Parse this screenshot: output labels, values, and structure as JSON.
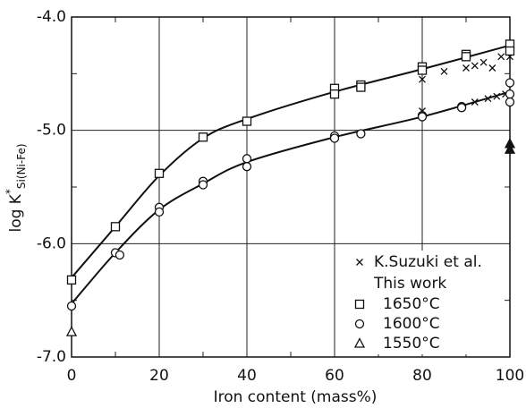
{
  "chart_data": {
    "type": "scatter",
    "xlabel": "Iron content (mass%)",
    "ylabel": {
      "main": "log K",
      "sup": "*",
      "sub": "Si(Ni-Fe)"
    },
    "xlim": [
      0,
      100
    ],
    "xticks": [
      0,
      20,
      40,
      60,
      80,
      100
    ],
    "xminor": [
      10,
      30,
      50,
      70,
      90
    ],
    "ylim": [
      -7,
      -4
    ],
    "yticks": [
      {
        "value": -7,
        "label": "-7.0"
      },
      {
        "value": -6,
        "label": "-6.0"
      },
      {
        "value": -5,
        "label": "-5.0"
      },
      {
        "value": -4,
        "label": "-4.0"
      }
    ],
    "yminor": [
      -6.5,
      -5.5,
      -4.5
    ],
    "grid": true,
    "legend_heading": "This work",
    "series": [
      {
        "name": "K.Suzuki et al.",
        "marker": "cross",
        "color": "#111",
        "x": [
          80,
          85,
          90,
          92,
          94,
          96,
          98,
          100,
          80,
          92,
          95,
          97,
          99
        ],
        "values": [
          -4.55,
          -4.48,
          -4.45,
          -4.43,
          -4.4,
          -4.45,
          -4.35,
          -4.35,
          -4.83,
          -4.75,
          -4.72,
          -4.7,
          -4.68
        ]
      },
      {
        "name": "1650°C",
        "marker": "square",
        "color": "#111",
        "x": [
          0,
          10,
          20,
          30,
          40,
          60,
          60,
          66,
          66,
          80,
          80,
          90,
          90,
          100,
          100
        ],
        "values": [
          -6.32,
          -5.85,
          -5.38,
          -5.06,
          -4.92,
          -4.63,
          -4.68,
          -4.6,
          -4.62,
          -4.44,
          -4.47,
          -4.33,
          -4.35,
          -4.24,
          -4.3
        ]
      },
      {
        "name": "1600°C",
        "marker": "circle",
        "color": "#111",
        "x": [
          0,
          10,
          11,
          20,
          20,
          30,
          30,
          40,
          40,
          60,
          60,
          66,
          80,
          80,
          89,
          89,
          100,
          100,
          100
        ],
        "values": [
          -6.55,
          -6.08,
          -6.1,
          -5.68,
          -5.72,
          -5.45,
          -5.48,
          -5.25,
          -5.32,
          -5.05,
          -5.07,
          -5.03,
          -4.87,
          -4.88,
          -4.79,
          -4.8,
          -4.58,
          -4.68,
          -4.75
        ]
      },
      {
        "name": "1550°C",
        "marker": "triangle",
        "color": "#111",
        "x": [
          0,
          100,
          100
        ],
        "values": [
          -6.78,
          -5.12,
          -5.17
        ]
      }
    ],
    "curves": [
      {
        "x": [
          0,
          10,
          20,
          30,
          40,
          60,
          80,
          100
        ],
        "values": [
          -6.3,
          -5.85,
          -5.4,
          -5.07,
          -4.9,
          -4.66,
          -4.46,
          -4.25
        ]
      },
      {
        "x": [
          0,
          10,
          20,
          30,
          40,
          60,
          80,
          100
        ],
        "values": [
          -6.53,
          -6.08,
          -5.7,
          -5.47,
          -5.28,
          -5.06,
          -4.88,
          -4.66
        ]
      }
    ]
  }
}
